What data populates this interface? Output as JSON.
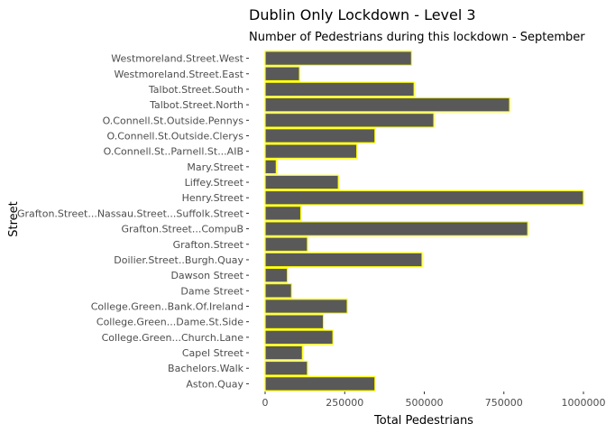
{
  "chart_data": {
    "type": "bar",
    "orientation": "horizontal",
    "title": "Dublin Only Lockdown -  Level 3",
    "subtitle": "Number of Pedestrians during this lockdown - September",
    "xlabel": "Total Pedestrians",
    "ylabel": "Street",
    "xlim": [
      0,
      1000000
    ],
    "xticks": [
      0,
      250000,
      500000,
      750000,
      1000000
    ],
    "xtick_labels": [
      "0",
      "250000",
      "500000",
      "750000",
      "1000000"
    ],
    "grid": false,
    "colors": {
      "bar_fill": "#595959",
      "bar_outline": "#ffff00"
    },
    "categories": [
      "Westmoreland.Street.West",
      "Westmoreland.Street.East",
      "Talbot.Street.South",
      "Talbot.Street.North",
      "O.Connell.St.Outside.Pennys",
      "O.Connell.St.Outside.Clerys",
      "O.Connell.St..Parnell.St...AIB",
      "Mary.Street",
      "Liffey.Street",
      "Henry.Street",
      "Grafton.Street...Nassau.Street...Suffolk.Street",
      "Grafton.Street...CompuB",
      "Grafton.Street",
      "Doilier.Street..Burgh.Quay",
      "Dawson Street",
      "Dame Street",
      "College.Green..Bank.Of.Ireland",
      "College.Green...Dame.St.Side",
      "College.Green...Church.Lane",
      "Capel Street",
      "Bachelors.Walk",
      "Aston.Quay"
    ],
    "values": [
      460000,
      108000,
      468000,
      768000,
      530000,
      345000,
      288000,
      35000,
      230000,
      1000000,
      112000,
      825000,
      133000,
      493000,
      70000,
      83000,
      258000,
      183000,
      213000,
      117000,
      133000,
      345000
    ]
  }
}
